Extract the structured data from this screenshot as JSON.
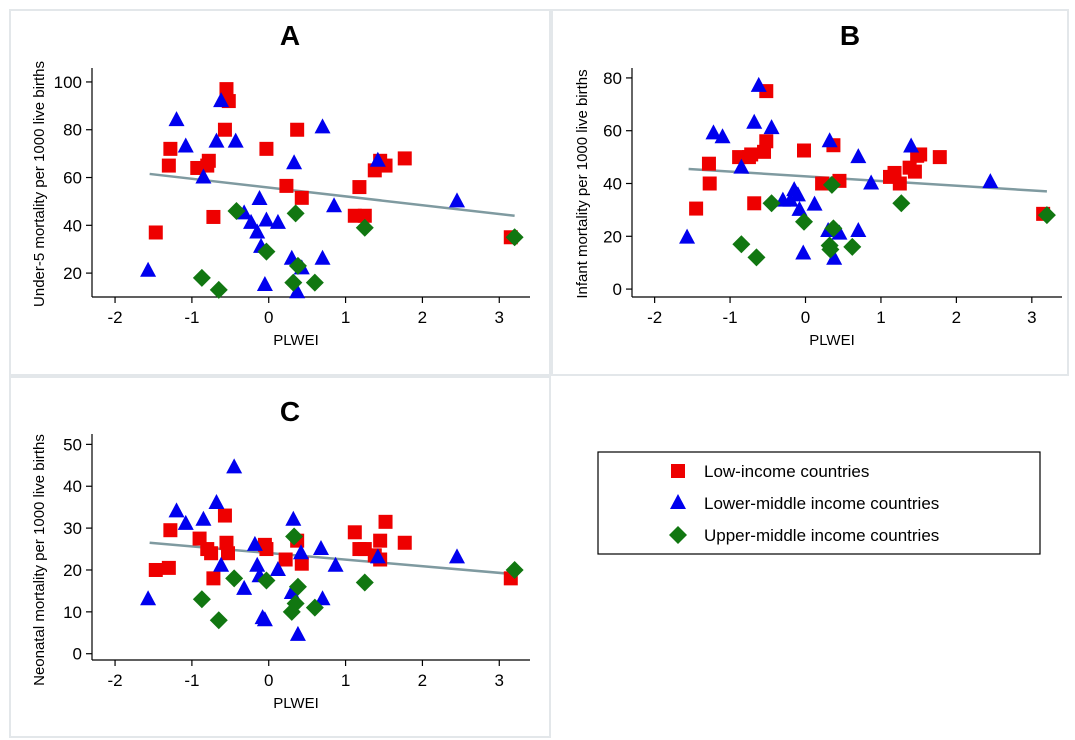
{
  "figure": {
    "colors": {
      "low_income": "#ee0000",
      "lower_middle": "#0000ee",
      "upper_middle": "#117711",
      "fit_line": "#7f9aa0",
      "panel_border": "#e3e7ea"
    },
    "legend": {
      "placement": "right",
      "entries": [
        {
          "label": "Low-income countries",
          "marker": "square",
          "color": "#ee0000"
        },
        {
          "label": "Lower-middle income countries",
          "marker": "triangle",
          "color": "#0000ee"
        },
        {
          "label": "Upper-middle income countries",
          "marker": "diamond",
          "color": "#117711"
        }
      ]
    }
  },
  "chart_data": [
    {
      "panel": "A",
      "type": "scatter",
      "xlabel": "PLWEI",
      "ylabel": "Under-5 mortality per 1000 live births",
      "xlim": [
        -2.3,
        3.4
      ],
      "ylim": [
        10,
        105
      ],
      "xticks": [
        -2,
        -1,
        0,
        1,
        2,
        3
      ],
      "yticks": [
        20,
        40,
        60,
        80,
        100
      ],
      "fit_line": {
        "x": [
          -1.55,
          3.2
        ],
        "y": [
          61.5,
          44
        ]
      },
      "series": [
        {
          "name": "Low-income countries",
          "marker": "square",
          "points": [
            [
              -1.47,
              37
            ],
            [
              -1.3,
              65
            ],
            [
              -1.28,
              72
            ],
            [
              -0.93,
              64
            ],
            [
              -0.8,
              65
            ],
            [
              -0.78,
              67
            ],
            [
              -0.72,
              43.5
            ],
            [
              -0.57,
              80
            ],
            [
              -0.55,
              97
            ],
            [
              -0.52,
              92
            ],
            [
              -0.03,
              72
            ],
            [
              0.23,
              56.5
            ],
            [
              0.37,
              80
            ],
            [
              0.43,
              51.5
            ],
            [
              1.12,
              44
            ],
            [
              1.18,
              56
            ],
            [
              1.25,
              44
            ],
            [
              1.38,
              63
            ],
            [
              1.45,
              67
            ],
            [
              1.52,
              65
            ],
            [
              1.77,
              68
            ],
            [
              3.15,
              35
            ]
          ]
        },
        {
          "name": "Lower-middle income countries",
          "marker": "triangle",
          "points": [
            [
              -1.57,
              21
            ],
            [
              -1.2,
              84
            ],
            [
              -1.08,
              73
            ],
            [
              -0.85,
              60
            ],
            [
              -0.68,
              75
            ],
            [
              -0.62,
              92
            ],
            [
              -0.43,
              75
            ],
            [
              -0.32,
              45
            ],
            [
              -0.23,
              41
            ],
            [
              -0.15,
              37
            ],
            [
              -0.12,
              51
            ],
            [
              -0.1,
              31
            ],
            [
              -0.05,
              15
            ],
            [
              -0.03,
              42
            ],
            [
              0.12,
              41
            ],
            [
              0.3,
              26
            ],
            [
              0.33,
              66
            ],
            [
              0.37,
              12
            ],
            [
              0.43,
              22
            ],
            [
              0.7,
              81
            ],
            [
              0.7,
              26
            ],
            [
              0.85,
              48
            ],
            [
              1.42,
              67
            ],
            [
              2.45,
              50
            ]
          ]
        },
        {
          "name": "Upper-middle income countries",
          "marker": "diamond",
          "points": [
            [
              -0.87,
              18
            ],
            [
              -0.65,
              13
            ],
            [
              -0.42,
              46
            ],
            [
              -0.03,
              29
            ],
            [
              0.32,
              16
            ],
            [
              0.35,
              45
            ],
            [
              0.38,
              23
            ],
            [
              0.6,
              16
            ],
            [
              1.25,
              39
            ],
            [
              3.2,
              35
            ]
          ]
        }
      ]
    },
    {
      "panel": "B",
      "type": "scatter",
      "xlabel": "PLWEI",
      "ylabel": "Infant mortality per 1000 live births",
      "xlim": [
        -2.3,
        3.4
      ],
      "ylim": [
        -3,
        83
      ],
      "xticks": [
        -2,
        -1,
        0,
        1,
        2,
        3
      ],
      "yticks": [
        0,
        20,
        40,
        60,
        80
      ],
      "fit_line": {
        "x": [
          -1.55,
          3.2
        ],
        "y": [
          45.5,
          37
        ]
      },
      "series": [
        {
          "name": "Low-income countries",
          "marker": "square",
          "points": [
            [
              -1.45,
              30.5
            ],
            [
              -1.28,
              47.5
            ],
            [
              -1.27,
              40
            ],
            [
              -0.88,
              50
            ],
            [
              -0.75,
              50
            ],
            [
              -0.72,
              51
            ],
            [
              -0.68,
              32.5
            ],
            [
              -0.55,
              52
            ],
            [
              -0.52,
              56
            ],
            [
              -0.52,
              75
            ],
            [
              -0.02,
              52.5
            ],
            [
              0.22,
              40
            ],
            [
              0.37,
              54.5
            ],
            [
              0.45,
              41
            ],
            [
              1.12,
              42.5
            ],
            [
              1.18,
              44
            ],
            [
              1.25,
              40
            ],
            [
              1.38,
              46
            ],
            [
              1.45,
              44.5
            ],
            [
              1.48,
              50.5
            ],
            [
              1.52,
              51
            ],
            [
              1.78,
              50
            ],
            [
              3.15,
              28.5
            ]
          ]
        },
        {
          "name": "Lower-middle income countries",
          "marker": "triangle",
          "points": [
            [
              -1.57,
              19.5
            ],
            [
              -1.22,
              59
            ],
            [
              -1.1,
              57.5
            ],
            [
              -0.85,
              46
            ],
            [
              -0.68,
              63
            ],
            [
              -0.62,
              77
            ],
            [
              -0.45,
              61
            ],
            [
              -0.3,
              33.5
            ],
            [
              -0.2,
              33.5
            ],
            [
              -0.15,
              37.5
            ],
            [
              -0.1,
              35.5
            ],
            [
              -0.08,
              30
            ],
            [
              -0.03,
              13.5
            ],
            [
              0.12,
              32
            ],
            [
              0.3,
              22
            ],
            [
              0.32,
              56
            ],
            [
              0.38,
              11.5
            ],
            [
              0.45,
              21
            ],
            [
              0.7,
              22
            ],
            [
              0.7,
              50
            ],
            [
              0.87,
              40
            ],
            [
              1.4,
              54
            ],
            [
              2.45,
              40.5
            ]
          ]
        },
        {
          "name": "Upper-middle income countries",
          "marker": "diamond",
          "points": [
            [
              -0.85,
              17
            ],
            [
              -0.65,
              12
            ],
            [
              -0.45,
              32.5
            ],
            [
              -0.02,
              25.5
            ],
            [
              0.32,
              16.5
            ],
            [
              0.35,
              39.5
            ],
            [
              0.37,
              23
            ],
            [
              0.33,
              15
            ],
            [
              0.62,
              16
            ],
            [
              1.27,
              32.5
            ],
            [
              3.2,
              28
            ]
          ]
        }
      ]
    },
    {
      "panel": "C",
      "type": "scatter",
      "xlabel": "PLWEI",
      "ylabel": "Neonatal mortality per 1000 live births",
      "xlim": [
        -2.3,
        3.4
      ],
      "ylim": [
        -1.5,
        52
      ],
      "xticks": [
        -2,
        -1,
        0,
        1,
        2,
        3
      ],
      "yticks": [
        0,
        10,
        20,
        30,
        40,
        50
      ],
      "fit_line": {
        "x": [
          -1.55,
          3.2
        ],
        "y": [
          26.5,
          19
        ]
      },
      "series": [
        {
          "name": "Low-income countries",
          "marker": "square",
          "points": [
            [
              -1.47,
              20
            ],
            [
              -1.3,
              20.5
            ],
            [
              -1.28,
              29.5
            ],
            [
              -0.9,
              27.5
            ],
            [
              -0.8,
              25
            ],
            [
              -0.75,
              24
            ],
            [
              -0.72,
              18
            ],
            [
              -0.57,
              33
            ],
            [
              -0.55,
              26.5
            ],
            [
              -0.53,
              24
            ],
            [
              -0.03,
              25
            ],
            [
              -0.05,
              26
            ],
            [
              0.22,
              22.5
            ],
            [
              0.37,
              27
            ],
            [
              0.43,
              21.5
            ],
            [
              1.12,
              29
            ],
            [
              1.18,
              25
            ],
            [
              1.25,
              25
            ],
            [
              1.38,
              23.5
            ],
            [
              1.45,
              22.5
            ],
            [
              1.45,
              27
            ],
            [
              1.52,
              31.5
            ],
            [
              1.77,
              26.5
            ],
            [
              3.15,
              18
            ]
          ]
        },
        {
          "name": "Lower-middle income countries",
          "marker": "triangle",
          "points": [
            [
              -1.57,
              13
            ],
            [
              -1.2,
              34
            ],
            [
              -1.08,
              31
            ],
            [
              -0.85,
              32
            ],
            [
              -0.68,
              36
            ],
            [
              -0.62,
              21
            ],
            [
              -0.45,
              44.5
            ],
            [
              -0.32,
              15.5
            ],
            [
              -0.18,
              26
            ],
            [
              -0.15,
              21
            ],
            [
              -0.12,
              18.5
            ],
            [
              -0.08,
              8.5
            ],
            [
              -0.05,
              8
            ],
            [
              0.12,
              20
            ],
            [
              0.3,
              14.5
            ],
            [
              0.32,
              32
            ],
            [
              0.38,
              4.5
            ],
            [
              0.42,
              24
            ],
            [
              0.68,
              25
            ],
            [
              0.7,
              13
            ],
            [
              0.87,
              21
            ],
            [
              1.42,
              23
            ],
            [
              2.45,
              23
            ]
          ]
        },
        {
          "name": "Upper-middle income countries",
          "marker": "diamond",
          "points": [
            [
              -0.87,
              13
            ],
            [
              -0.65,
              8
            ],
            [
              -0.45,
              18
            ],
            [
              -0.03,
              17.5
            ],
            [
              0.3,
              10
            ],
            [
              0.33,
              28
            ],
            [
              0.35,
              12
            ],
            [
              0.38,
              16
            ],
            [
              0.6,
              11
            ],
            [
              1.25,
              17
            ],
            [
              3.2,
              20
            ]
          ]
        }
      ]
    }
  ]
}
